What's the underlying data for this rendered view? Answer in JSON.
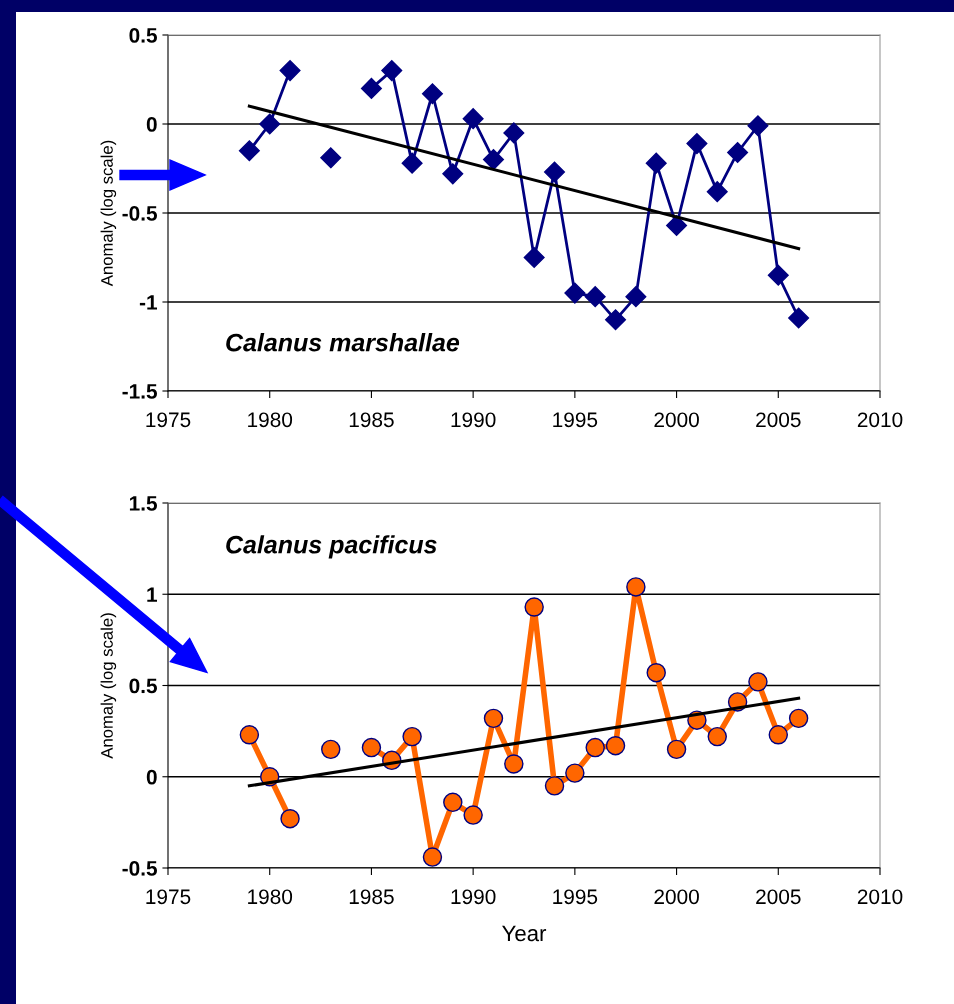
{
  "chart_data": [
    {
      "type": "line",
      "ylabel": "Anomaly (log scale)",
      "annotations": [
        "Calanus marshallae"
      ],
      "series": [
        {
          "color": "#000080",
          "marker": "diamond",
          "x": [
            1979,
            1980,
            1981,
            1982,
            1983,
            1984,
            1985,
            1986,
            1987,
            1988,
            1989,
            1990,
            1991,
            1992,
            1993,
            1994,
            1995,
            1996,
            1997,
            1998,
            1999,
            2000,
            2001,
            2002,
            2003,
            2004,
            2005,
            2006
          ],
          "values": [
            -0.15,
            0.0,
            0.3,
            null,
            -0.19,
            null,
            0.2,
            0.3,
            -0.22,
            0.17,
            -0.28,
            0.03,
            -0.2,
            -0.05,
            -0.75,
            -0.27,
            -0.95,
            -0.97,
            -1.1,
            -0.97,
            -0.22,
            -0.57,
            -0.11,
            -0.38,
            -0.16,
            -0.01,
            -0.85,
            -1.09
          ]
        },
        {
          "color": "#000000",
          "marker": "none",
          "x": [
            1979,
            2006
          ],
          "values": [
            0.1,
            -0.7
          ]
        }
      ],
      "xlim": [
        1975,
        2010
      ],
      "xticks": [
        1975,
        1980,
        1985,
        1990,
        1995,
        2000,
        2005,
        2010
      ],
      "ylim": [
        -1.5,
        0.5
      ],
      "yticks": [
        -1.5,
        -1,
        -0.5,
        0,
        0.5
      ],
      "grid": "y",
      "legend": false
    },
    {
      "type": "line",
      "ylabel": "Anomaly (log scale)",
      "xlabel": "Year",
      "annotations": [
        "Calanus pacificus"
      ],
      "series": [
        {
          "color": "#ff6600",
          "marker": "circle",
          "x": [
            1979,
            1980,
            1981,
            1982,
            1983,
            1984,
            1985,
            1986,
            1987,
            1988,
            1989,
            1990,
            1991,
            1992,
            1993,
            1994,
            1995,
            1996,
            1997,
            1998,
            1999,
            2000,
            2001,
            2002,
            2003,
            2004,
            2005,
            2006
          ],
          "values": [
            0.23,
            0.0,
            -0.23,
            null,
            0.15,
            null,
            0.16,
            0.09,
            0.22,
            -0.44,
            -0.14,
            -0.21,
            0.32,
            0.07,
            0.93,
            -0.05,
            0.02,
            0.16,
            0.17,
            1.04,
            0.57,
            0.15,
            0.31,
            0.22,
            0.41,
            0.52,
            0.23,
            0.32
          ]
        },
        {
          "color": "#000000",
          "marker": "none",
          "x": [
            1979,
            2006
          ],
          "values": [
            -0.05,
            0.43
          ]
        }
      ],
      "xlim": [
        1975,
        2010
      ],
      "xticks": [
        1975,
        1980,
        1985,
        1990,
        1995,
        2000,
        2005,
        2010
      ],
      "ylim": [
        -0.5,
        1.5
      ],
      "yticks": [
        -0.5,
        0,
        0.5,
        1,
        1.5
      ],
      "grid": "y",
      "legend": false
    }
  ]
}
